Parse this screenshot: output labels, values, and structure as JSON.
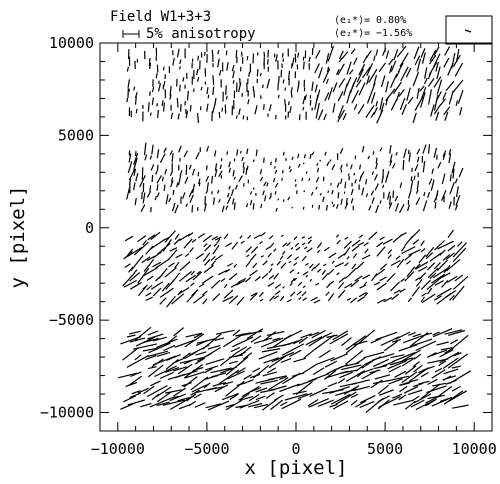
{
  "header": {
    "field_title": "Field W1+3+3",
    "scale_label": "5% anisotropy",
    "e1_label": "⟨e₁*⟩=",
    "e1_value": "0.80%",
    "e2_label": "⟨e₂*⟩=",
    "e2_value": "−1.56%",
    "mean_stick_icon": "mean-anisotropy-stick-icon"
  },
  "chart_data": {
    "type": "scatter",
    "subtype": "whisker-plot",
    "title": "Field W1+3+3",
    "xlabel": "x [pixel]",
    "ylabel": "y [pixel]",
    "xlim": [
      -11000,
      11000
    ],
    "ylim": [
      -11000,
      10000
    ],
    "xticks": [
      -10000,
      -5000,
      0,
      5000,
      10000
    ],
    "yticks": [
      -10000,
      -5000,
      0,
      5000,
      10000
    ],
    "xtick_labels": [
      "−10000",
      "−5000",
      "0",
      "5000",
      "10000"
    ],
    "ytick_labels": [
      "−10000",
      "−5000",
      "0",
      "5000",
      "10000"
    ],
    "scale_bar_anisotropy_percent": 5,
    "mean_e1_percent": 0.8,
    "mean_e2_percent": -1.56,
    "grid": false,
    "chips": [
      {
        "name": "",
        "x_range": [
          -9500,
          9500
        ],
        "y_range": [
          5800,
          9600
        ],
        "mean_len_percent": 4.0,
        "angle_deg": 65
      },
      {
        "name": "",
        "x_range": [
          -9500,
          9500
        ],
        "y_range": [
          900,
          4300
        ],
        "mean_len_percent": 3.0,
        "angle_deg": 75
      },
      {
        "name": "",
        "x_range": [
          -9500,
          9500
        ],
        "y_range": [
          -4300,
          -300
        ],
        "mean_len_percent": 4.5,
        "angle_deg": 40
      },
      {
        "name": "",
        "x_range": [
          -9500,
          9500
        ],
        "y_range": [
          -9800,
          -5600
        ],
        "mean_len_percent": 6.0,
        "angle_deg": 25
      }
    ]
  }
}
